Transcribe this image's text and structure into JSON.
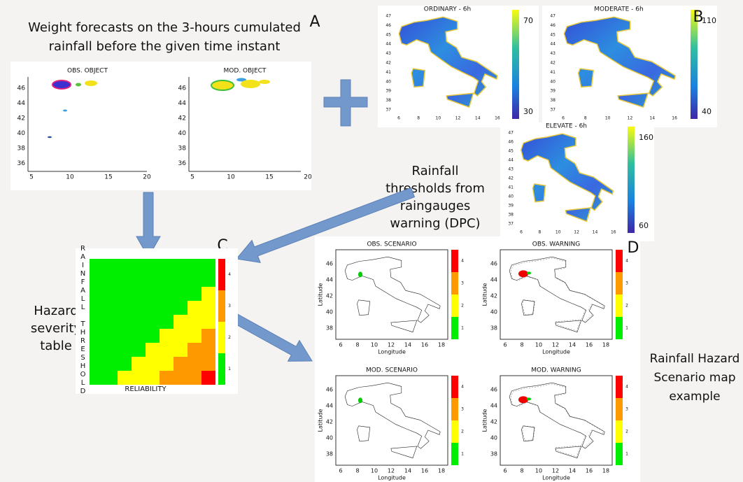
{
  "panel_labels": {
    "a": "A",
    "b": "B",
    "c": "C",
    "d": "D"
  },
  "weight_caption": [
    "Weight forecasts on the 3-hours cumulated",
    "rainfall before the given time instant"
  ],
  "object_panels": [
    {
      "title": "OBS. OBJECT"
    },
    {
      "title": "MOD. OBJECT"
    }
  ],
  "object_axis": {
    "yticks": [
      "46",
      "44",
      "42",
      "40",
      "38",
      "36"
    ],
    "xticks": [
      "5",
      "10",
      "15",
      "20"
    ]
  },
  "threshold_maps": [
    {
      "title": "ORDINARY - 6h",
      "colorbar": [
        "70",
        "30"
      ]
    },
    {
      "title": "MODERATE - 6h",
      "colorbar": [
        "110",
        "40"
      ]
    },
    {
      "title": "ELEVATE - 6h",
      "colorbar": [
        "160",
        "60"
      ]
    }
  ],
  "threshold_axis": {
    "yticks": [
      "47",
      "46",
      "45",
      "44",
      "43",
      "42",
      "41",
      "40",
      "39",
      "38",
      "37"
    ],
    "xticks": [
      "6",
      "8",
      "10",
      "12",
      "14",
      "16"
    ]
  },
  "thresholds_caption": [
    "Rainfall",
    "thresholds from",
    "raingauges",
    "warning (DPC)"
  ],
  "hazard_caption": [
    "Hazard",
    "severity",
    "table"
  ],
  "hazard_table": {
    "y_label": "RAINFALL THRESHOLD",
    "x_label": "RELIABILITY",
    "colorbar": [
      "4",
      "3",
      "2",
      "1"
    ]
  },
  "scenario_panels": [
    {
      "title": "OBS. SCENARIO"
    },
    {
      "title": "OBS. WARNING"
    },
    {
      "title": "MOD. SCENARIO"
    },
    {
      "title": "MOD. WARNING"
    }
  ],
  "scenario_axis": {
    "ylabel": "Latitude",
    "xlabel": "Longitude",
    "yticks": [
      "46",
      "44",
      "42",
      "40",
      "38"
    ],
    "xticks": [
      "6",
      "8",
      "10",
      "12",
      "14",
      "16",
      "18"
    ],
    "colorbar": [
      "4",
      "3",
      "2",
      "1"
    ]
  },
  "scenario_caption": [
    "Rainfall Hazard",
    "Scenario map",
    "example"
  ]
}
